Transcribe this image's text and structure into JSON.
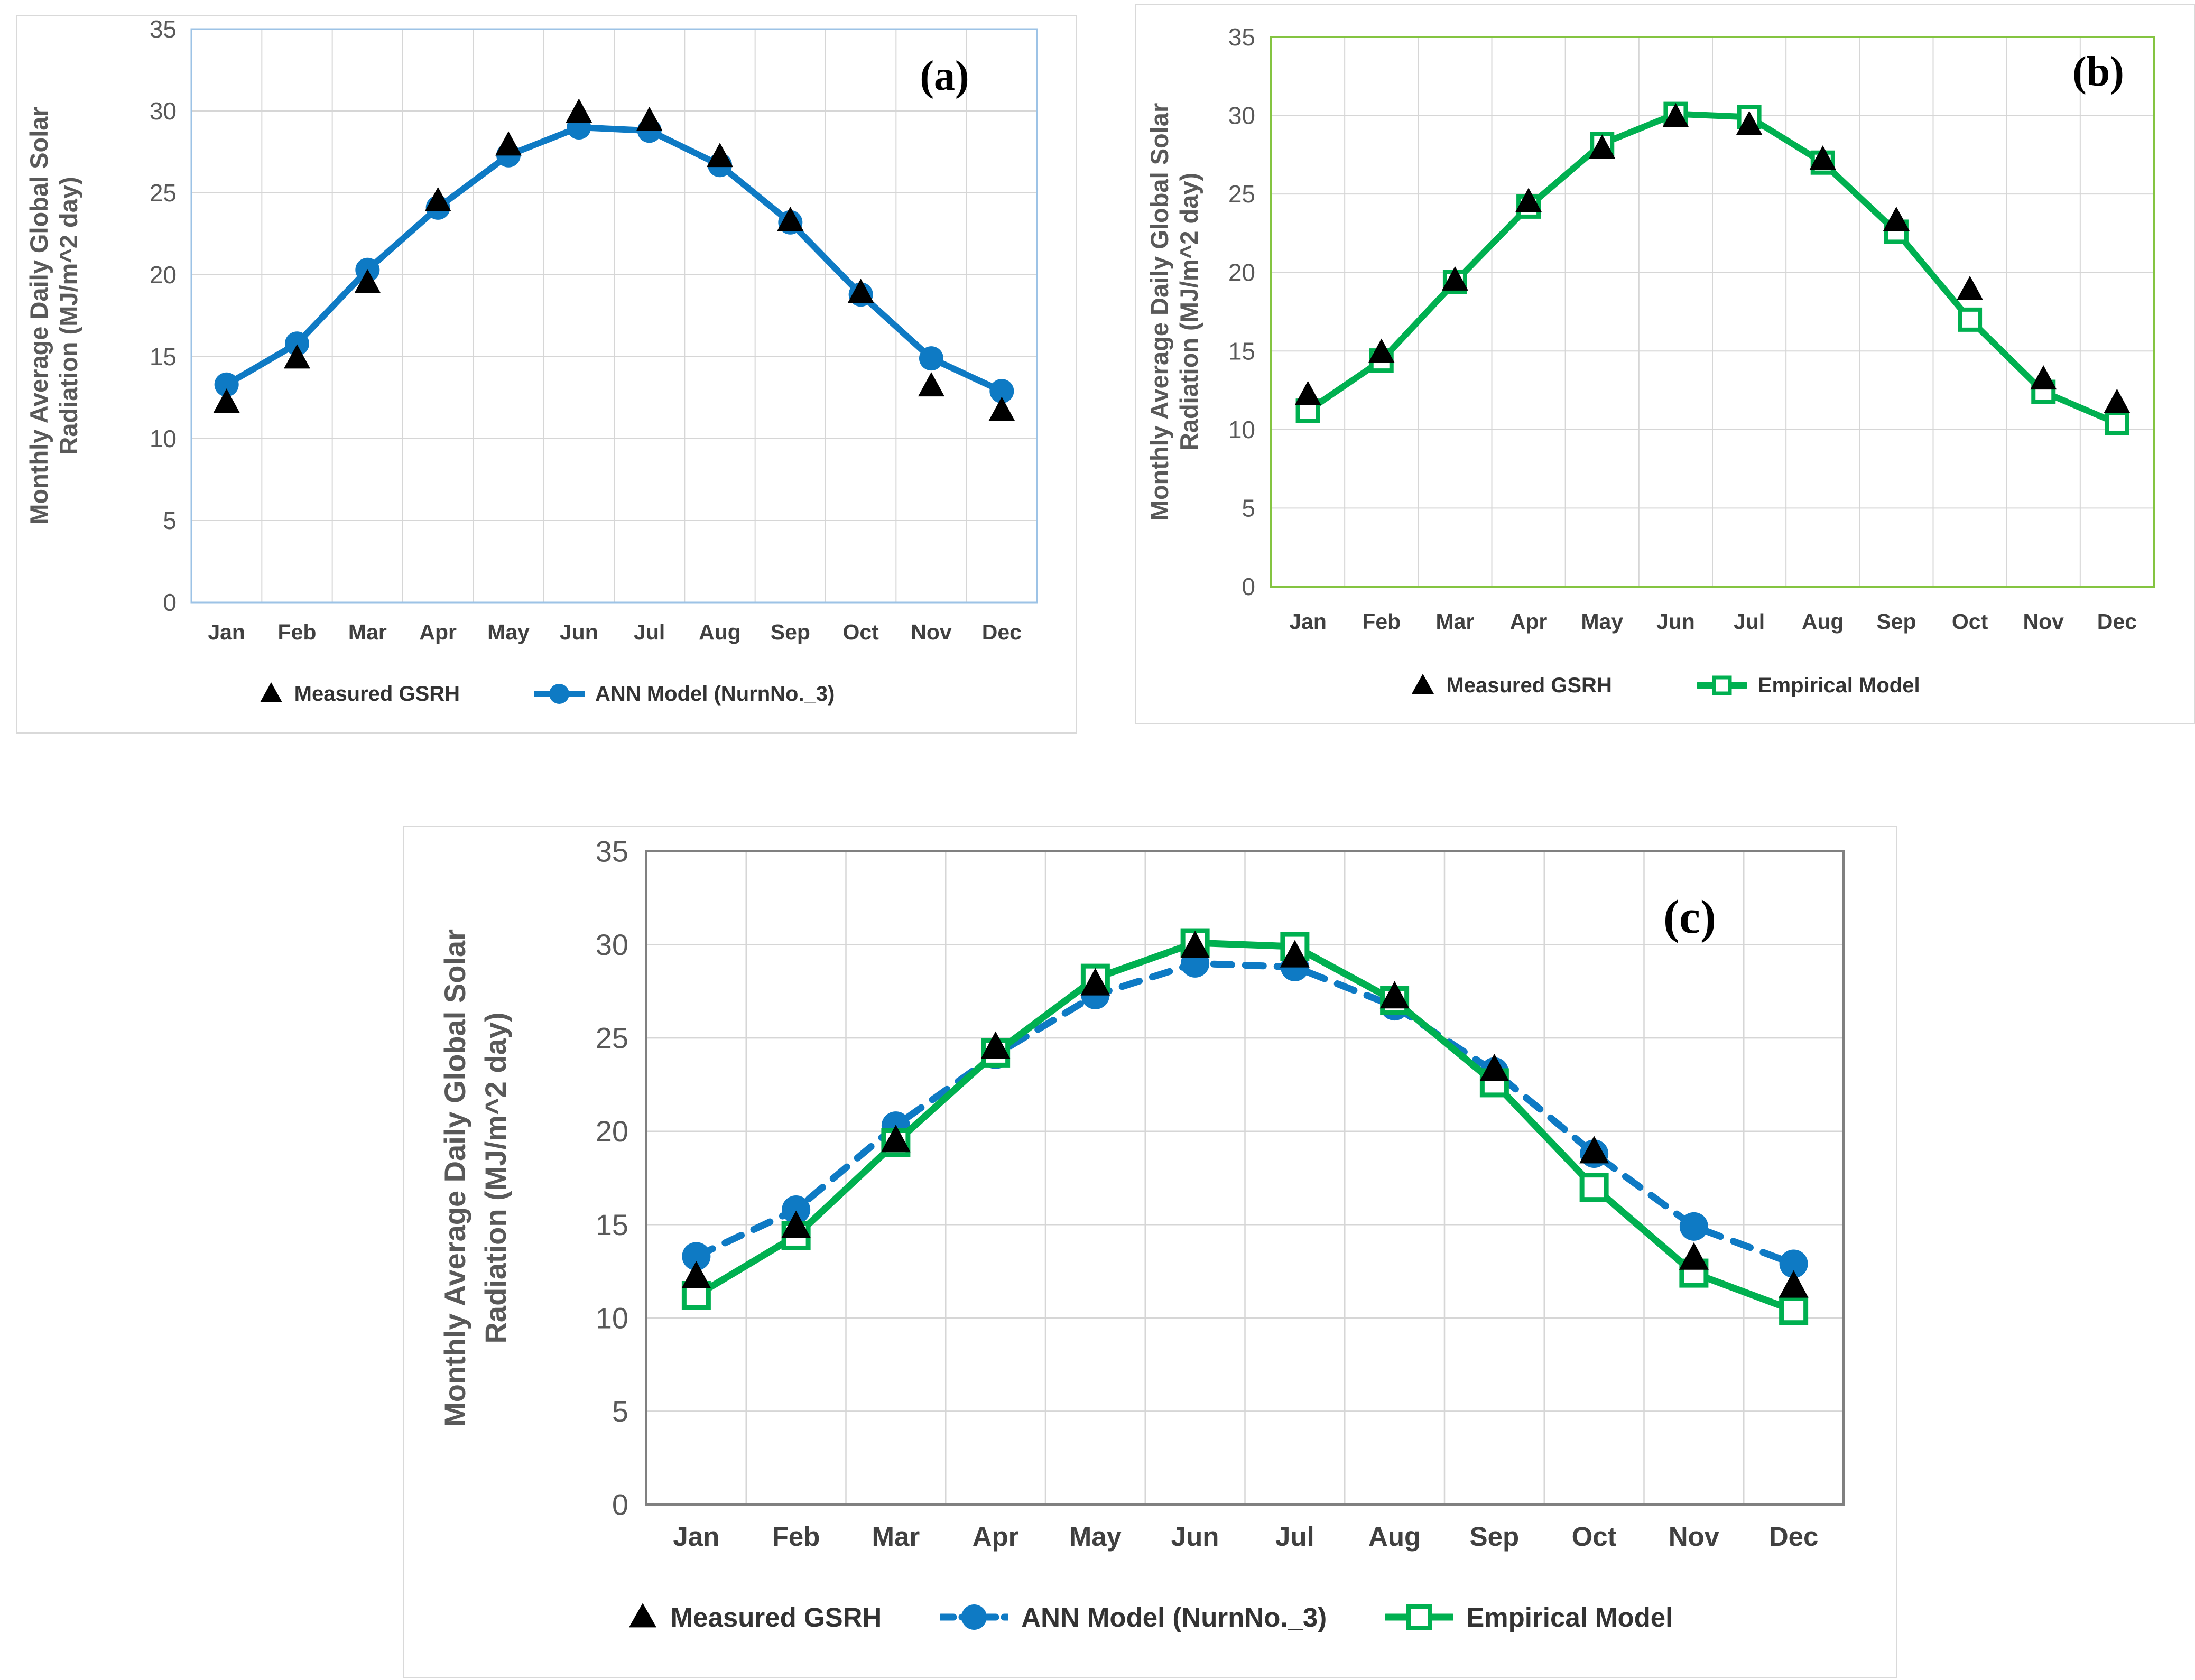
{
  "figure": {
    "description": "Comparison of measured and modeled monthly average daily global solar radiation",
    "background": "#ffffff"
  },
  "colors": {
    "measured": "#000000",
    "ann": "#0E7AC4",
    "empirical": "#00B050",
    "grid": "#D6D6D6",
    "tick_text": "#595959",
    "month_text": "#404040",
    "ylabel_text": "#595959",
    "legend_text": "#333333",
    "panel_letter": "#000000",
    "panel_border": "#D9D9D9"
  },
  "chart_data": [
    {
      "id": "a",
      "type": "line",
      "panel_label": "(a)",
      "title": "",
      "xlabel": "",
      "ylabel_line1": "Monthly Average Daily Global Solar",
      "ylabel_line2": "Radiation (MJ/m^2 day)",
      "categories": [
        "Jan",
        "Feb",
        "Mar",
        "Apr",
        "May",
        "Jun",
        "Jul",
        "Aug",
        "Sep",
        "Oct",
        "Nov",
        "Dec"
      ],
      "ylim": [
        0,
        35
      ],
      "ytick_step": 5,
      "grid": true,
      "legend_position": "bottom",
      "plot_border_color": "#9DC3E6",
      "series": [
        {
          "name": "Measured GSRH",
          "type": "scatter",
          "marker": "triangle",
          "color": "#000000",
          "dash": false,
          "values": [
            12.2,
            14.9,
            19.5,
            24.5,
            27.9,
            29.9,
            29.4,
            27.2,
            23.3,
            18.9,
            13.2,
            11.7
          ]
        },
        {
          "name": "ANN Model (NurnNo._3)",
          "type": "line",
          "marker": "circle",
          "color": "#0E7AC4",
          "dash": false,
          "values": [
            13.3,
            15.8,
            20.3,
            24.1,
            27.3,
            29.0,
            28.8,
            26.7,
            23.2,
            18.8,
            14.9,
            12.9
          ]
        }
      ]
    },
    {
      "id": "b",
      "type": "line",
      "panel_label": "(b)",
      "title": "",
      "xlabel": "",
      "ylabel_line1": "Monthly Average Daily Global Solar",
      "ylabel_line2": "Radiation (MJ/m^2 day)",
      "categories": [
        "Jan",
        "Feb",
        "Mar",
        "Apr",
        "May",
        "Jun",
        "Jul",
        "Aug",
        "Sep",
        "Oct",
        "Nov",
        "Dec"
      ],
      "ylim": [
        0,
        35
      ],
      "ytick_step": 5,
      "grid": true,
      "legend_position": "bottom",
      "plot_border_color": "#84C441",
      "series": [
        {
          "name": "Measured GSRH",
          "type": "scatter",
          "marker": "triangle",
          "color": "#000000",
          "dash": false,
          "values": [
            12.2,
            14.9,
            19.5,
            24.5,
            27.9,
            29.9,
            29.4,
            27.2,
            23.3,
            18.9,
            13.2,
            11.7
          ]
        },
        {
          "name": "Empirical Model",
          "type": "line",
          "marker": "square",
          "color": "#00B050",
          "dash": false,
          "values": [
            11.2,
            14.4,
            19.4,
            24.2,
            28.2,
            30.1,
            29.9,
            27.0,
            22.6,
            17.0,
            12.4,
            10.4
          ]
        }
      ]
    },
    {
      "id": "c",
      "type": "line",
      "panel_label": "(c)",
      "title": "",
      "xlabel": "",
      "ylabel_line1": "Monthly Average Daily Global Solar",
      "ylabel_line2": "Radiation (MJ/m^2 day)",
      "categories": [
        "Jan",
        "Feb",
        "Mar",
        "Apr",
        "May",
        "Jun",
        "Jul",
        "Aug",
        "Sep",
        "Oct",
        "Nov",
        "Dec"
      ],
      "ylim": [
        0,
        35
      ],
      "ytick_step": 5,
      "grid": true,
      "legend_position": "bottom",
      "plot_border_color": "#808080",
      "series": [
        {
          "name": "Measured GSRH",
          "type": "scatter",
          "marker": "triangle",
          "color": "#000000",
          "dash": false,
          "values": [
            12.2,
            14.9,
            19.5,
            24.5,
            27.9,
            29.9,
            29.4,
            27.2,
            23.3,
            18.9,
            13.2,
            11.7
          ]
        },
        {
          "name": "ANN Model (NurnNo._3)",
          "type": "line",
          "marker": "circle",
          "color": "#0E7AC4",
          "dash": true,
          "values": [
            13.3,
            15.8,
            20.3,
            24.1,
            27.3,
            29.0,
            28.8,
            26.7,
            23.2,
            18.8,
            14.9,
            12.9
          ]
        },
        {
          "name": "Empirical Model",
          "type": "line",
          "marker": "square",
          "color": "#00B050",
          "dash": false,
          "values": [
            11.2,
            14.4,
            19.4,
            24.2,
            28.2,
            30.1,
            29.9,
            27.0,
            22.6,
            17.0,
            12.4,
            10.4
          ]
        }
      ]
    }
  ]
}
